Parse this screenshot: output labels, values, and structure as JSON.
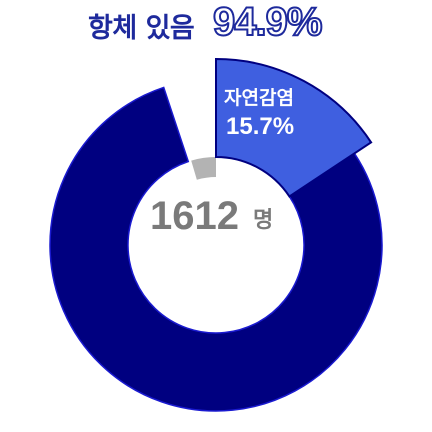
{
  "header": {
    "label": "항체 있음",
    "value": "94.9%"
  },
  "center": {
    "total": "1612",
    "unit": "명"
  },
  "colors": {
    "main_segment": "#000080",
    "callout_segment": "#3f5fe0",
    "small_segment": "#b3b3b3",
    "text_dark": "#1e2a9c",
    "text_gray": "#7a7a7a"
  },
  "chart_data": {
    "type": "pie",
    "title": "항체 있음 94.9%",
    "center_label": "1612 명",
    "slices": [
      {
        "name": "자연감염",
        "value": 15.7,
        "label": "15.7%"
      },
      {
        "name": "",
        "value": 79.2,
        "label": ""
      },
      {
        "name": "",
        "value": 5.1,
        "label": ""
      }
    ]
  }
}
